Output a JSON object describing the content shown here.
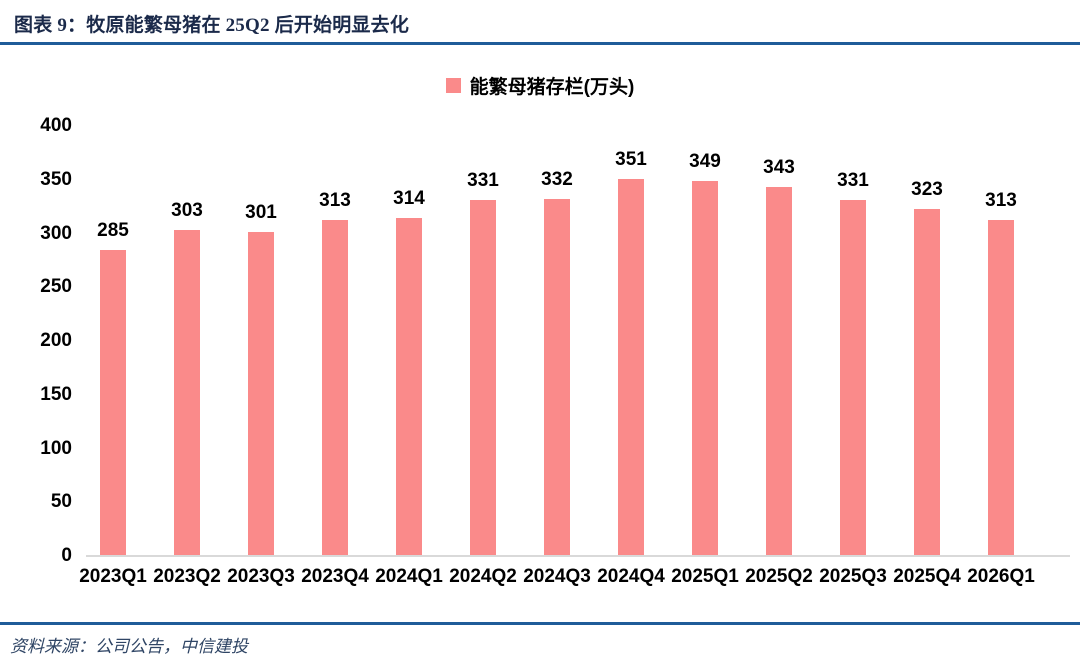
{
  "figure": {
    "title": "图表 9：牧原能繁母猪在 25Q2 后开始明显去化",
    "source_note": "资料来源：公司公告，中信建投"
  },
  "colors": {
    "bar": "#FA8A8A",
    "rule": "#1F5C99",
    "axis_line": "#D9D9D9",
    "title_text": "#1B2A4A",
    "source_text": "#2F4565"
  },
  "chart_data": {
    "type": "bar",
    "title": "",
    "legend_label": "能繁母猪存栏(万头)",
    "legend_position": "top-center",
    "categories": [
      "2023Q1",
      "2023Q2",
      "2023Q3",
      "2023Q4",
      "2024Q1",
      "2024Q2",
      "2024Q3",
      "2024Q4",
      "2025Q1",
      "2025Q2",
      "2025Q3",
      "2025Q4",
      "2026Q1"
    ],
    "values": [
      285,
      303,
      301,
      313,
      314,
      331,
      332,
      351,
      349,
      343,
      331,
      323,
      313
    ],
    "xlabel": "",
    "ylabel": "",
    "ylim": [
      0,
      400
    ],
    "ytick_step": 50,
    "grid": false,
    "data_labels": true
  }
}
